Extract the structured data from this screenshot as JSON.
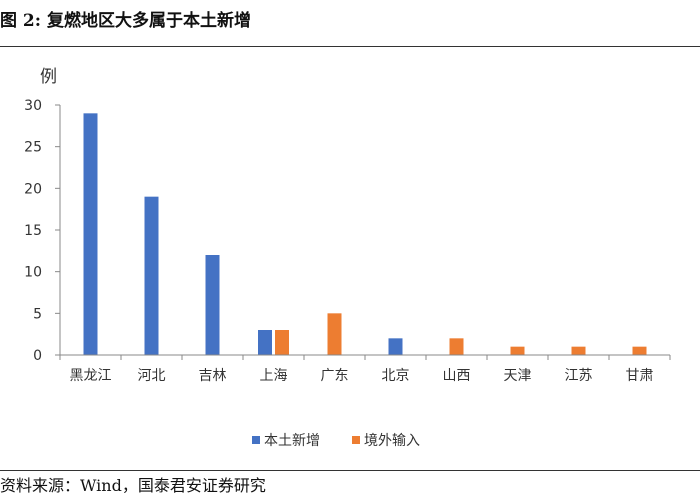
{
  "figure": {
    "title": "图 2: 复燃地区大多属于本土新增",
    "source": "资料来源：Wind，国泰君安证券研究"
  },
  "chart_data": {
    "type": "bar",
    "unit_label": "例",
    "categories": [
      "黑龙江",
      "河北",
      "吉林",
      "上海",
      "广东",
      "北京",
      "山西",
      "天津",
      "江苏",
      "甘肃"
    ],
    "series": [
      {
        "name": "本土新增",
        "color": "#4472C4",
        "values": [
          29,
          19,
          12,
          3,
          0,
          2,
          0,
          0,
          0,
          0
        ]
      },
      {
        "name": "境外输入",
        "color": "#ED7D31",
        "values": [
          0,
          0,
          0,
          3,
          5,
          0,
          2,
          1,
          1,
          1
        ]
      }
    ],
    "ylim": [
      0,
      30
    ],
    "yticks": [
      0,
      5,
      10,
      15,
      20,
      25,
      30
    ],
    "grid": false,
    "legend_position": "bottom"
  }
}
